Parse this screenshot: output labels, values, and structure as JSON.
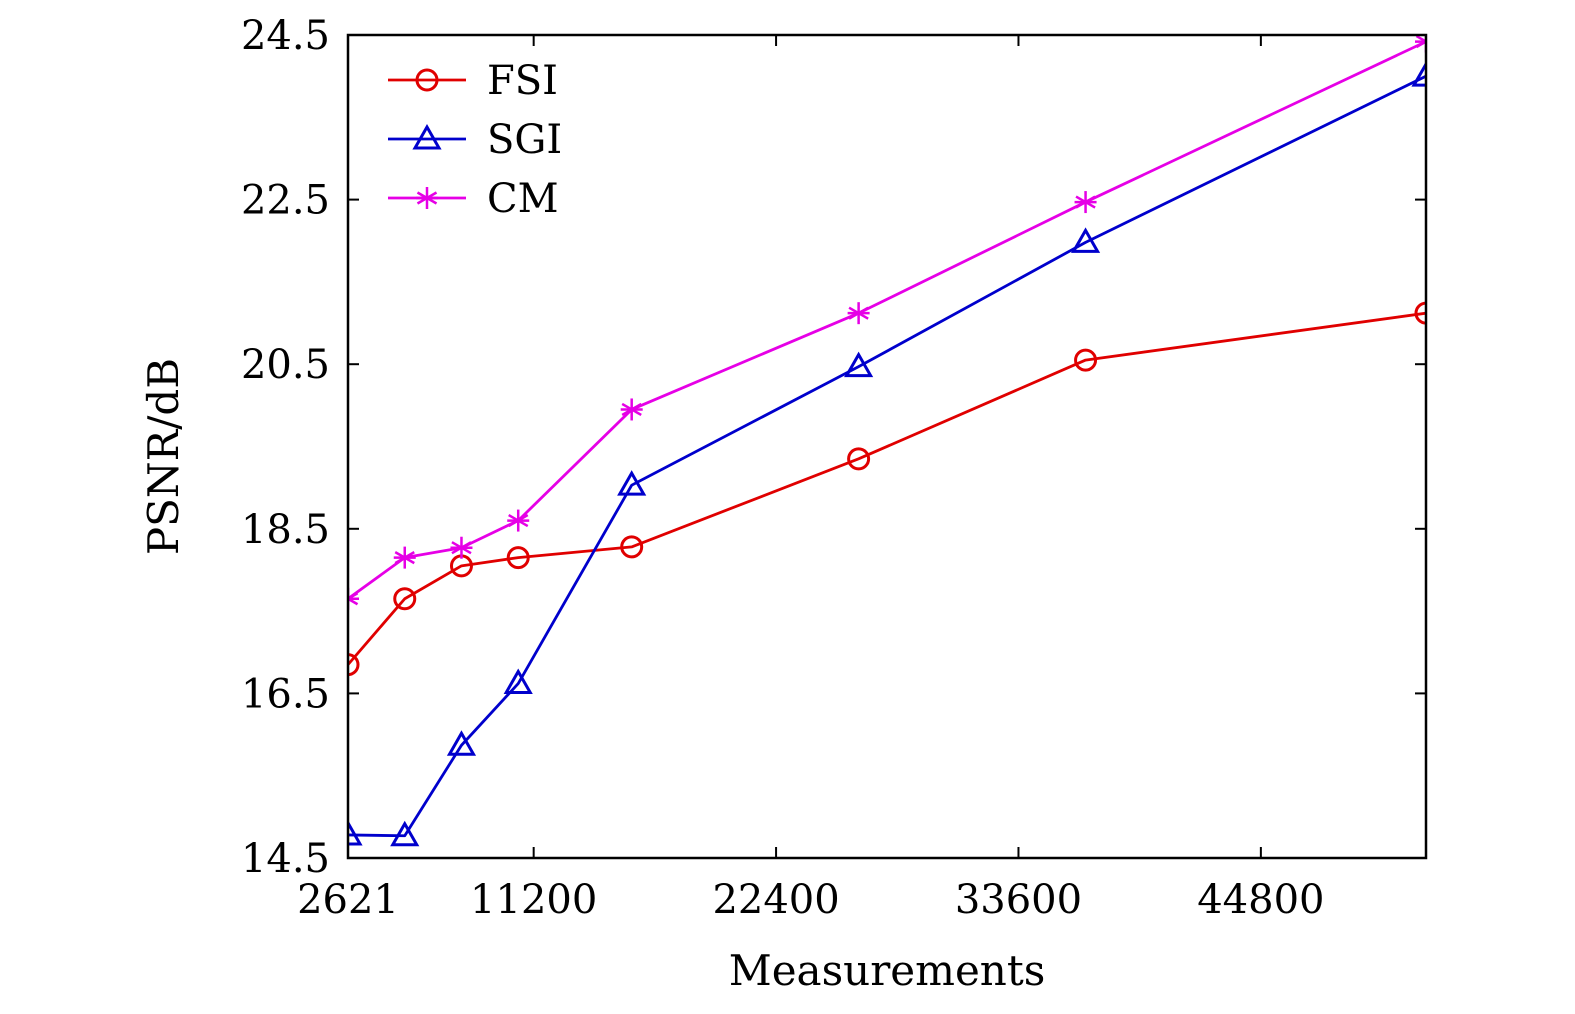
{
  "chart_data": {
    "type": "line",
    "title": "",
    "xlabel": "Measurements",
    "ylabel": "PSNR/dB",
    "xlim": [
      2621,
      52430
    ],
    "ylim": [
      14.5,
      24.5
    ],
    "xticks": [
      2621,
      11200,
      22400,
      33600,
      44800
    ],
    "yticks": [
      14.5,
      16.5,
      18.5,
      20.5,
      22.5,
      24.5
    ],
    "xtick_labels": [
      "2621",
      "11200",
      "22400",
      "33600",
      "44800"
    ],
    "ytick_labels": [
      "14.5",
      "16.5",
      "18.5",
      "20.5",
      "22.5",
      "24.5"
    ],
    "grid": false,
    "legend_position": "top-left",
    "x": [
      2621,
      5243,
      7864,
      10486,
      15729,
      26214,
      36700,
      52430
    ],
    "series": [
      {
        "name": "FSI",
        "color": "#e00000",
        "marker": "circle",
        "values": [
          16.85,
          17.65,
          18.05,
          18.15,
          18.28,
          19.35,
          20.55,
          21.12
        ]
      },
      {
        "name": "SGI",
        "color": "#0000cc",
        "marker": "triangle",
        "values": [
          14.78,
          14.77,
          15.87,
          16.62,
          19.03,
          20.47,
          21.98,
          24.0
        ]
      },
      {
        "name": "CM",
        "color": "#e600e6",
        "marker": "asterisk",
        "values": [
          17.65,
          18.15,
          18.27,
          18.6,
          19.95,
          21.12,
          22.47,
          24.42
        ]
      }
    ]
  }
}
